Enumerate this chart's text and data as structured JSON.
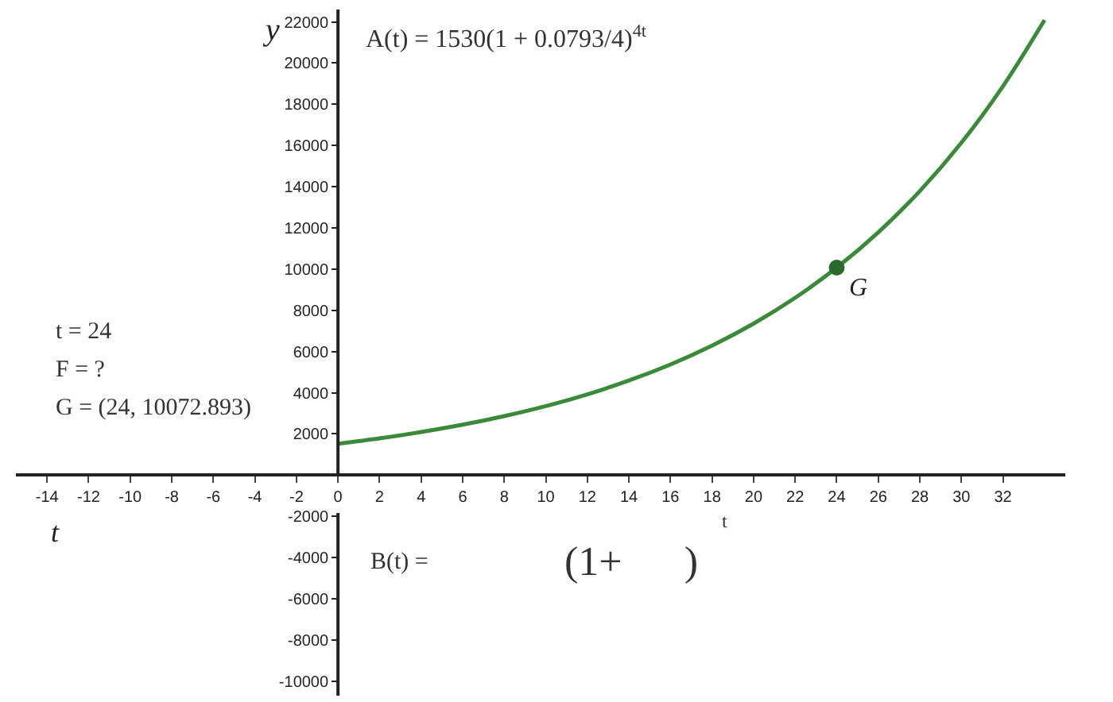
{
  "chart_data": {
    "type": "line",
    "xlabel": "t",
    "ylabel": "y",
    "x": [
      0,
      2,
      4,
      6,
      8,
      10,
      12,
      14,
      16,
      18,
      20,
      22,
      24,
      26,
      28,
      30,
      32,
      34
    ],
    "series": [
      {
        "type": "line",
        "color": "#3a8a3a",
        "marker": "none",
        "values": [
          1530,
          1790,
          2095,
          2451,
          2868,
          3355,
          3926,
          4593,
          5374,
          6289,
          7358,
          8609,
          10073,
          11785,
          13790,
          16135,
          18879,
          22089
        ]
      },
      {
        "type": "scatter",
        "color": "#2a6a2a",
        "marker": "circle",
        "x": [
          24
        ],
        "values": [
          10072.893
        ]
      }
    ],
    "xlim": [
      -15.5,
      35
    ],
    "ylim": [
      -10700,
      22600
    ],
    "xticks": [
      -14,
      -12,
      -10,
      -8,
      -6,
      -4,
      -2,
      0,
      2,
      4,
      6,
      8,
      10,
      12,
      14,
      16,
      18,
      20,
      22,
      24,
      26,
      28,
      30,
      32
    ],
    "yticks": [
      -10000,
      -8000,
      -6000,
      -4000,
      -2000,
      2000,
      4000,
      6000,
      8000,
      10000,
      12000,
      14000,
      16000,
      18000,
      20000,
      22000
    ],
    "grid": false,
    "legend": false,
    "annotations": [
      {
        "text": "G",
        "x": 24,
        "y": 10072.893
      },
      "A(t) = 1530(1 + 0.0793/4)$^{4t}$",
      "t = 24",
      "F = ?",
      "G = (24, 10072.893)",
      "B(t) =",
      "(1+      )",
      "t"
    ]
  }
}
